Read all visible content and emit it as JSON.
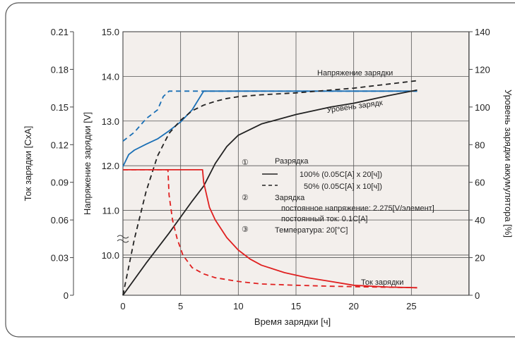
{
  "chart_data": {
    "type": "line",
    "xlabel": "Время зарядки [ч]",
    "ylabel_left_current": "Ток зарядки [CxA]",
    "ylabel_left_voltage": "Напряжение зарядки [V]",
    "ylabel_right": "Уровень зарядки аккумулятора [%]",
    "x_ticks": [
      "0",
      "5",
      "10",
      "15",
      "20",
      "25"
    ],
    "current_ticks": [
      "0",
      "0.03",
      "0.06",
      "0.09",
      "0.12",
      "0.15",
      "0.18",
      "0.21"
    ],
    "voltage_ticks": [
      "10.0",
      "11.0",
      "12.0",
      "13.0",
      "14.0",
      "15.0"
    ],
    "level_ticks": [
      "0",
      "20",
      "40",
      "60",
      "80",
      "100",
      "120",
      "140"
    ],
    "xlim": [
      0,
      30
    ],
    "current_lim": [
      0,
      0.21
    ],
    "voltage_lim": [
      9.1,
      15.0
    ],
    "level_lim": [
      0,
      140
    ],
    "grid": true,
    "annotations": {
      "voltage_label": "Напряжение зарядки",
      "level_label": "Уровень зарядк",
      "current_label": "Ток зарядки"
    },
    "legend": {
      "n1": "①",
      "n1_title": "Разрядка",
      "n1_line1": "100% (0.05C[A] x 20[ч])",
      "n1_line2": "50% (0.05C[A] x 10[ч])",
      "n2": "②",
      "n2_title": "Зарядка",
      "n2_line1": "постоянное напряжение: 2.275[V/элемент]",
      "n2_line2": "постоянный ток: 0.1C[A]",
      "n3": "③",
      "n3_line1": "Температура: 20[°C]"
    },
    "colors": {
      "voltage": "#1a6fb5",
      "level": "#222222",
      "current": "#e02020",
      "plot_bg": "#f3efec",
      "grid": "#555555"
    },
    "series": [
      {
        "name": "Напряжение зарядки 100%",
        "axis": "voltage",
        "style": "solid",
        "x": [
          0,
          0.5,
          1,
          2,
          3,
          4,
          5,
          6,
          7,
          10,
          15,
          20,
          25.5
        ],
        "y": [
          11.98,
          12.25,
          12.35,
          12.48,
          12.6,
          12.78,
          12.98,
          13.25,
          13.67,
          13.67,
          13.67,
          13.67,
          13.67
        ]
      },
      {
        "name": "Напряжение зарядки 50%",
        "axis": "voltage",
        "style": "dashed",
        "x": [
          0,
          1,
          2,
          3,
          3.5,
          4,
          10,
          15,
          20,
          25.5
        ],
        "y": [
          12.55,
          12.75,
          13.05,
          13.25,
          13.55,
          13.67,
          13.67,
          13.67,
          13.67,
          13.67
        ]
      },
      {
        "name": "Уровень зарядки 100%",
        "axis": "level",
        "style": "solid",
        "x": [
          0,
          2,
          4,
          6,
          7,
          8,
          9,
          10,
          12,
          15,
          18,
          20,
          23,
          25.5
        ],
        "y": [
          0,
          17,
          33,
          50,
          58,
          70,
          79,
          85,
          91,
          96,
          100,
          102,
          106,
          109
        ]
      },
      {
        "name": "Уровень зарядки 50%",
        "axis": "level",
        "style": "dashed",
        "x": [
          0,
          1,
          2,
          3,
          4,
          5,
          6,
          7,
          8,
          9,
          10,
          12,
          15,
          20,
          25.5
        ],
        "y": [
          0,
          30,
          55,
          74,
          86,
          93,
          98,
          101,
          103,
          104.5,
          105.5,
          106.5,
          107.5,
          110,
          114
        ]
      },
      {
        "name": "Ток зарядки 100%",
        "axis": "current",
        "style": "solid",
        "x": [
          0,
          6.9,
          7,
          7.5,
          8,
          9,
          10,
          11,
          12,
          14,
          16,
          18,
          20,
          23,
          25.5
        ],
        "y": [
          0.1,
          0.1,
          0.09,
          0.07,
          0.06,
          0.046,
          0.036,
          0.029,
          0.024,
          0.018,
          0.014,
          0.011,
          0.008,
          0.0065,
          0.006
        ]
      },
      {
        "name": "Ток зарядки 50%",
        "axis": "current",
        "style": "dashed",
        "x": [
          0,
          3.9,
          4,
          4.3,
          4.7,
          5.2,
          6,
          7,
          8,
          10,
          12,
          15,
          18,
          21,
          23,
          25.5
        ],
        "y": [
          0.1,
          0.1,
          0.08,
          0.06,
          0.045,
          0.032,
          0.022,
          0.017,
          0.014,
          0.011,
          0.009,
          0.008,
          0.0072,
          0.0067,
          0.0064,
          0.006
        ]
      }
    ]
  }
}
